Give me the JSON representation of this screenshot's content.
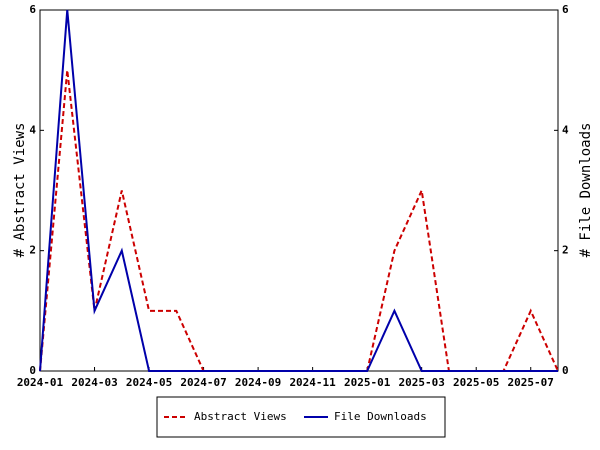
{
  "chart_data": {
    "type": "line",
    "x": [
      "2024-01",
      "2024-02",
      "2024-03",
      "2024-04",
      "2024-05",
      "2024-06",
      "2024-07",
      "2024-08",
      "2024-09",
      "2024-10",
      "2024-11",
      "2024-12",
      "2025-01",
      "2025-02",
      "2025-03",
      "2025-04",
      "2025-05",
      "2025-06",
      "2025-07",
      "2025-08"
    ],
    "xticks": [
      "2024-01",
      "2024-03",
      "2024-05",
      "2024-07",
      "2024-09",
      "2024-11",
      "2025-01",
      "2025-03",
      "2025-05",
      "2025-07"
    ],
    "y_label": "# Abstract Views",
    "y2_label": "# File Downloads",
    "ylim": [
      0,
      6
    ],
    "yticks": [
      0,
      2,
      4,
      6
    ],
    "y2lim": [
      0,
      6
    ],
    "y2ticks": [
      0,
      2,
      4,
      6
    ],
    "legend": "bottom",
    "series": [
      {
        "name": "Abstract Views",
        "color": "#cc0000",
        "dash": true,
        "values": [
          0,
          5,
          1,
          3,
          1,
          1,
          0,
          0,
          0,
          0,
          0,
          0,
          0,
          2,
          3,
          0,
          0,
          0,
          1,
          0
        ]
      },
      {
        "name": "File Downloads",
        "color": "#0000aa",
        "dash": false,
        "axis": "y2",
        "values": [
          0,
          6,
          1,
          2,
          0,
          0,
          0,
          0,
          0,
          0,
          0,
          0,
          0,
          1,
          0,
          0,
          0,
          0,
          0,
          0
        ]
      }
    ]
  }
}
